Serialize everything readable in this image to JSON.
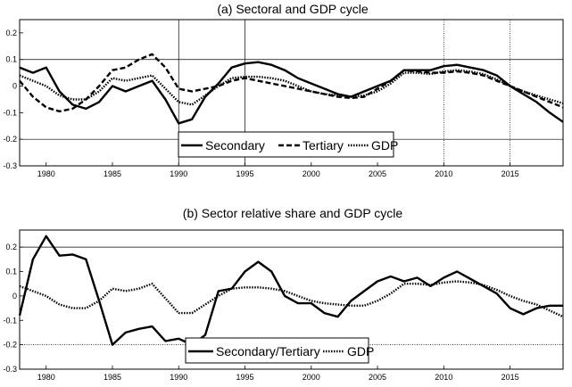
{
  "chart_data": [
    {
      "type": "line",
      "title": "(a) Sectoral and GDP cycle",
      "xlabel": "",
      "ylabel": "",
      "xlim": [
        1978,
        2019
      ],
      "ylim": [
        -0.3,
        0.25
      ],
      "yticks": [
        -0.3,
        -0.2,
        -0.1,
        0,
        0.1,
        0.2
      ],
      "ytick_labels": [
        "-0.3",
        "-0.2",
        "-0.1",
        "0",
        "0.1",
        "0.2"
      ],
      "xticks": [
        1980,
        1985,
        1990,
        1995,
        2000,
        2005,
        2010,
        2015
      ],
      "xtick_labels": [
        "1980",
        "1985",
        "1990",
        "1995",
        "2000",
        "2005",
        "2010",
        "2015"
      ],
      "reference_lines": {
        "horizontal": [
          {
            "y": 0.1,
            "style": "solid"
          },
          {
            "y": -0.2,
            "style": "solid"
          }
        ],
        "vertical": [
          {
            "x": 1990,
            "style": "solid"
          },
          {
            "x": 1995,
            "style": "solid"
          },
          {
            "x": 2010,
            "style": "dotted"
          },
          {
            "x": 2015,
            "style": "dotted"
          }
        ]
      },
      "legend": {
        "placement": "bottom-center",
        "entries": [
          "Secondary",
          "Tertiary",
          "GDP"
        ]
      },
      "x": [
        1978,
        1979,
        1980,
        1981,
        1982,
        1983,
        1984,
        1985,
        1986,
        1987,
        1988,
        1989,
        1990,
        1991,
        1992,
        1993,
        1994,
        1995,
        1996,
        1997,
        1998,
        1999,
        2000,
        2001,
        2002,
        2003,
        2004,
        2005,
        2006,
        2007,
        2008,
        2009,
        2010,
        2011,
        2012,
        2013,
        2014,
        2015,
        2016,
        2017,
        2018,
        2019
      ],
      "series": [
        {
          "name": "Secondary",
          "style": "solid",
          "values": [
            0.07,
            0.05,
            0.07,
            -0.02,
            -0.07,
            -0.085,
            -0.06,
            0.0,
            -0.02,
            0.0,
            0.02,
            -0.05,
            -0.14,
            -0.125,
            -0.04,
            0.01,
            0.07,
            0.085,
            0.09,
            0.08,
            0.06,
            0.03,
            0.01,
            -0.01,
            -0.03,
            -0.04,
            -0.02,
            0.0,
            0.02,
            0.06,
            0.06,
            0.06,
            0.075,
            0.08,
            0.07,
            0.06,
            0.04,
            0.0,
            -0.03,
            -0.06,
            -0.1,
            -0.135
          ]
        },
        {
          "name": "Tertiary",
          "style": "dashed",
          "values": [
            0.02,
            -0.04,
            -0.08,
            -0.095,
            -0.085,
            -0.05,
            0.0,
            0.06,
            0.07,
            0.1,
            0.12,
            0.07,
            -0.01,
            -0.02,
            -0.01,
            0.0,
            0.02,
            0.03,
            0.02,
            0.01,
            0.0,
            -0.01,
            -0.02,
            -0.03,
            -0.04,
            -0.045,
            -0.04,
            -0.01,
            0.02,
            0.06,
            0.055,
            0.05,
            0.05,
            0.055,
            0.05,
            0.04,
            0.02,
            0.0,
            -0.02,
            -0.04,
            -0.06,
            -0.08
          ]
        },
        {
          "name": "GDP",
          "style": "dotted",
          "values": [
            0.04,
            0.02,
            0.0,
            -0.035,
            -0.05,
            -0.05,
            -0.02,
            0.03,
            0.02,
            0.03,
            0.04,
            -0.01,
            -0.06,
            -0.07,
            -0.035,
            0.0,
            0.03,
            0.035,
            0.035,
            0.03,
            0.02,
            0.0,
            -0.02,
            -0.03,
            -0.035,
            -0.04,
            -0.035,
            -0.02,
            0.01,
            0.05,
            0.05,
            0.045,
            0.055,
            0.06,
            0.055,
            0.045,
            0.025,
            0.0,
            -0.02,
            -0.035,
            -0.05,
            -0.065
          ]
        }
      ]
    },
    {
      "type": "line",
      "title": "(b) Sector relative share and GDP cycle",
      "xlabel": "",
      "ylabel": "",
      "xlim": [
        1978,
        2019
      ],
      "ylim": [
        -0.3,
        0.27
      ],
      "yticks": [
        -0.3,
        -0.2,
        -0.1,
        0,
        0.1,
        0.2
      ],
      "ytick_labels": [
        "-0.3",
        "-0.2",
        "-0.1",
        "0",
        "0.1",
        "0.2"
      ],
      "xticks": [
        1980,
        1985,
        1990,
        1995,
        2000,
        2005,
        2010,
        2015
      ],
      "xtick_labels": [
        "1980",
        "1985",
        "1990",
        "1995",
        "2000",
        "2005",
        "2010",
        "2015"
      ],
      "reference_lines": {
        "horizontal": [
          {
            "y": 0.2,
            "style": "solid"
          },
          {
            "y": -0.2,
            "style": "dotted"
          }
        ],
        "vertical": []
      },
      "legend": {
        "placement": "bottom-center",
        "entries": [
          "Secondary/Tertiary",
          "GDP"
        ]
      },
      "x": [
        1978,
        1979,
        1980,
        1981,
        1982,
        1983,
        1984,
        1985,
        1986,
        1987,
        1988,
        1989,
        1990,
        1991,
        1992,
        1993,
        1994,
        1995,
        1996,
        1997,
        1998,
        1999,
        2000,
        2001,
        2002,
        2003,
        2004,
        2005,
        2006,
        2007,
        2008,
        2009,
        2010,
        2011,
        2012,
        2013,
        2014,
        2015,
        2016,
        2017,
        2018,
        2019
      ],
      "series": [
        {
          "name": "Secondary/Tertiary",
          "style": "solid",
          "values": [
            -0.08,
            0.15,
            0.245,
            0.165,
            0.17,
            0.15,
            -0.02,
            -0.2,
            -0.15,
            -0.135,
            -0.125,
            -0.185,
            -0.175,
            -0.2,
            -0.16,
            0.02,
            0.03,
            0.1,
            0.14,
            0.1,
            0.0,
            -0.03,
            -0.03,
            -0.07,
            -0.085,
            -0.02,
            0.02,
            0.06,
            0.08,
            0.06,
            0.075,
            0.04,
            0.075,
            0.1,
            0.07,
            0.04,
            0.01,
            -0.05,
            -0.075,
            -0.05,
            -0.04,
            -0.04
          ]
        },
        {
          "name": "GDP",
          "style": "dotted",
          "values": [
            0.04,
            0.02,
            0.0,
            -0.035,
            -0.05,
            -0.05,
            -0.02,
            0.03,
            0.02,
            0.03,
            0.05,
            -0.01,
            -0.07,
            -0.07,
            -0.035,
            0.0,
            0.03,
            0.035,
            0.035,
            0.03,
            0.02,
            0.0,
            -0.02,
            -0.03,
            -0.035,
            -0.04,
            -0.04,
            -0.02,
            0.01,
            0.05,
            0.05,
            0.045,
            0.055,
            0.06,
            0.055,
            0.045,
            0.025,
            0.0,
            -0.02,
            -0.035,
            -0.06,
            -0.085
          ]
        }
      ]
    }
  ]
}
